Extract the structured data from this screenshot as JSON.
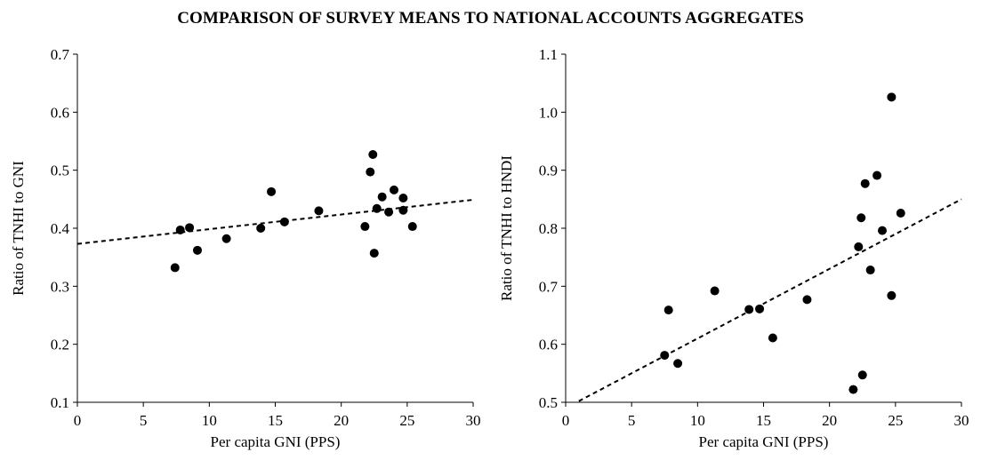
{
  "title": "COMPARISON OF SURVEY MEANS TO NATIONAL ACCOUNTS AGGREGATES",
  "chart_data": [
    {
      "type": "scatter",
      "xlabel": "Per capita GNI (PPS)",
      "ylabel": "Ratio of TNHI to GNI",
      "xlim": [
        0,
        30
      ],
      "ylim": [
        0.1,
        0.7
      ],
      "xticks": [
        0,
        5,
        10,
        15,
        20,
        25,
        30
      ],
      "yticks": [
        0.1,
        0.2,
        0.3,
        0.4,
        0.5,
        0.6,
        0.7
      ],
      "tick_decimals": 1,
      "grid": false,
      "trendline": {
        "style": "dashed",
        "from": [
          0,
          0.373
        ],
        "to": [
          30,
          0.449
        ]
      },
      "points": [
        {
          "x": 7.4,
          "y": 0.332
        },
        {
          "x": 7.8,
          "y": 0.397
        },
        {
          "x": 8.5,
          "y": 0.401
        },
        {
          "x": 9.1,
          "y": 0.362
        },
        {
          "x": 11.3,
          "y": 0.382
        },
        {
          "x": 13.9,
          "y": 0.4
        },
        {
          "x": 14.7,
          "y": 0.463
        },
        {
          "x": 15.7,
          "y": 0.411
        },
        {
          "x": 18.3,
          "y": 0.43
        },
        {
          "x": 21.8,
          "y": 0.403
        },
        {
          "x": 22.2,
          "y": 0.497
        },
        {
          "x": 22.4,
          "y": 0.527
        },
        {
          "x": 22.5,
          "y": 0.357
        },
        {
          "x": 22.7,
          "y": 0.434
        },
        {
          "x": 23.1,
          "y": 0.454
        },
        {
          "x": 23.6,
          "y": 0.428
        },
        {
          "x": 24.0,
          "y": 0.466
        },
        {
          "x": 24.7,
          "y": 0.452
        },
        {
          "x": 24.7,
          "y": 0.431
        },
        {
          "x": 25.4,
          "y": 0.403
        }
      ]
    },
    {
      "type": "scatter",
      "xlabel": "Per capita GNI (PPS)",
      "ylabel": "Ratio of TNHI to HNDI",
      "xlim": [
        0,
        30
      ],
      "ylim": [
        0.5,
        1.1
      ],
      "xticks": [
        0,
        5,
        10,
        15,
        20,
        25,
        30
      ],
      "yticks": [
        0.5,
        0.6,
        0.7,
        0.8,
        0.9,
        1.0,
        1.1
      ],
      "tick_decimals": 1,
      "grid": false,
      "trendline": {
        "style": "dashed",
        "from": [
          1.0,
          0.502
        ],
        "to": [
          30,
          0.85
        ]
      },
      "points": [
        {
          "x": 7.5,
          "y": 0.581
        },
        {
          "x": 7.8,
          "y": 0.659
        },
        {
          "x": 8.5,
          "y": 0.567
        },
        {
          "x": 11.3,
          "y": 0.692
        },
        {
          "x": 13.9,
          "y": 0.66
        },
        {
          "x": 14.7,
          "y": 0.661
        },
        {
          "x": 15.7,
          "y": 0.611
        },
        {
          "x": 18.3,
          "y": 0.677
        },
        {
          "x": 21.8,
          "y": 0.522
        },
        {
          "x": 22.2,
          "y": 0.768
        },
        {
          "x": 22.4,
          "y": 0.818
        },
        {
          "x": 22.5,
          "y": 0.547
        },
        {
          "x": 22.7,
          "y": 0.877
        },
        {
          "x": 23.1,
          "y": 0.728
        },
        {
          "x": 23.6,
          "y": 0.891
        },
        {
          "x": 24.0,
          "y": 0.796
        },
        {
          "x": 24.7,
          "y": 1.026
        },
        {
          "x": 24.7,
          "y": 0.684
        },
        {
          "x": 25.4,
          "y": 0.826
        }
      ]
    }
  ]
}
